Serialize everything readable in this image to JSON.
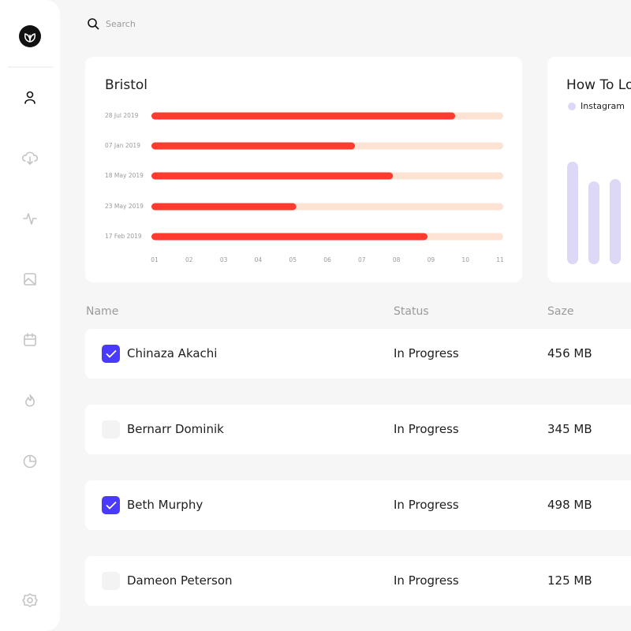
{
  "search": {
    "placeholder": "Search"
  },
  "chart_data": [
    {
      "type": "hbar",
      "title": "Bristol",
      "categories": [
        "28 Jul 2019",
        "07 Jan 2019",
        "18 May 2019",
        "23 May 2019",
        "17 Feb 2019"
      ],
      "values": [
        9.7,
        6.8,
        7.9,
        5.1,
        8.9
      ],
      "color": "#ff3b2f",
      "track_color": "#fde3d3",
      "xlim": [
        1,
        11
      ],
      "xticks": [
        {
          "value": 1,
          "label": "01"
        },
        {
          "value": 2,
          "label": "02"
        },
        {
          "value": 3,
          "label": "03"
        },
        {
          "value": 4,
          "label": "04"
        },
        {
          "value": 5,
          "label": "05"
        },
        {
          "value": 6,
          "label": "06"
        },
        {
          "value": 7,
          "label": "07"
        },
        {
          "value": 8,
          "label": "08"
        },
        {
          "value": 9,
          "label": "09"
        },
        {
          "value": 10,
          "label": "10"
        },
        {
          "value": 11,
          "label": "11"
        }
      ]
    },
    {
      "type": "bar",
      "title": "How To Lo",
      "series": [
        {
          "name": "Instagram",
          "color": "#dcd8f5",
          "values": [
            130,
            105,
            108
          ]
        }
      ]
    }
  ],
  "table": {
    "columns": [
      "Name",
      "Status",
      "Saze"
    ],
    "rows": [
      {
        "checked": true,
        "cells": [
          "Chinaza Akachi",
          "In Progress",
          "456 MB"
        ]
      },
      {
        "checked": false,
        "cells": [
          "Bernarr Dominik",
          "In Progress",
          "345 MB"
        ]
      },
      {
        "checked": true,
        "cells": [
          "Beth Murphy",
          "In Progress",
          "498 MB"
        ]
      },
      {
        "checked": false,
        "cells": [
          "Dameon Peterson",
          "In Progress",
          "125 MB"
        ]
      }
    ]
  }
}
